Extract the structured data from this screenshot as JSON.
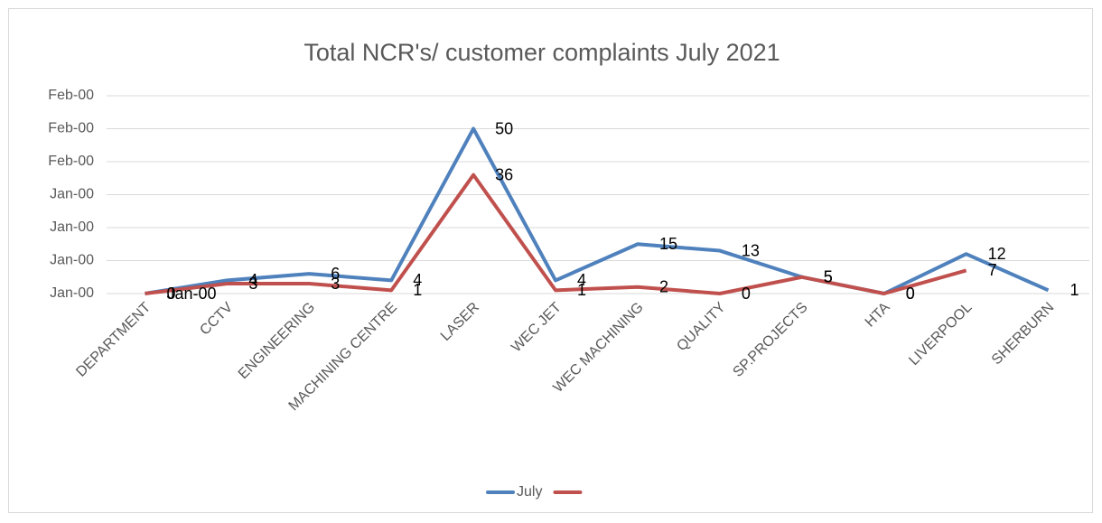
{
  "chart_data": {
    "type": "line",
    "title": "Total NCR's/ customer complaints July 2021",
    "categories": [
      "DEPARTMENT",
      "CCTV",
      "ENGINEERING",
      "MACHINING CENTRE",
      "LASER",
      "WEC JET",
      "WEC MACHINING",
      "QUALITY",
      "SP.PROJECTS",
      "HTA",
      "LIVERPOOL",
      "SHERBURN"
    ],
    "series": [
      {
        "name": "July",
        "color": "#4f81bd",
        "values": [
          0,
          4,
          6,
          4,
          50,
          4,
          15,
          13,
          5,
          0,
          12,
          1
        ]
      },
      {
        "color": "#c0504d",
        "values": [
          0,
          3,
          3,
          1,
          36,
          1,
          2,
          0,
          5,
          0,
          7,
          null
        ],
        "value_labels": [
          "Jan-00",
          3,
          3,
          1,
          36,
          1,
          2,
          0,
          5,
          0,
          7,
          null
        ]
      }
    ],
    "ylim": [
      0,
      60
    ],
    "yticks": [
      {
        "value": 0,
        "label": "Jan-00"
      },
      {
        "value": 10,
        "label": "Jan-00"
      },
      {
        "value": 20,
        "label": "Jan-00"
      },
      {
        "value": 30,
        "label": "Jan-00"
      },
      {
        "value": 40,
        "label": "Feb-00"
      },
      {
        "value": 50,
        "label": "Feb-00"
      },
      {
        "value": 60,
        "label": "Feb-00"
      }
    ],
    "grid": true,
    "legend": "bottom"
  }
}
